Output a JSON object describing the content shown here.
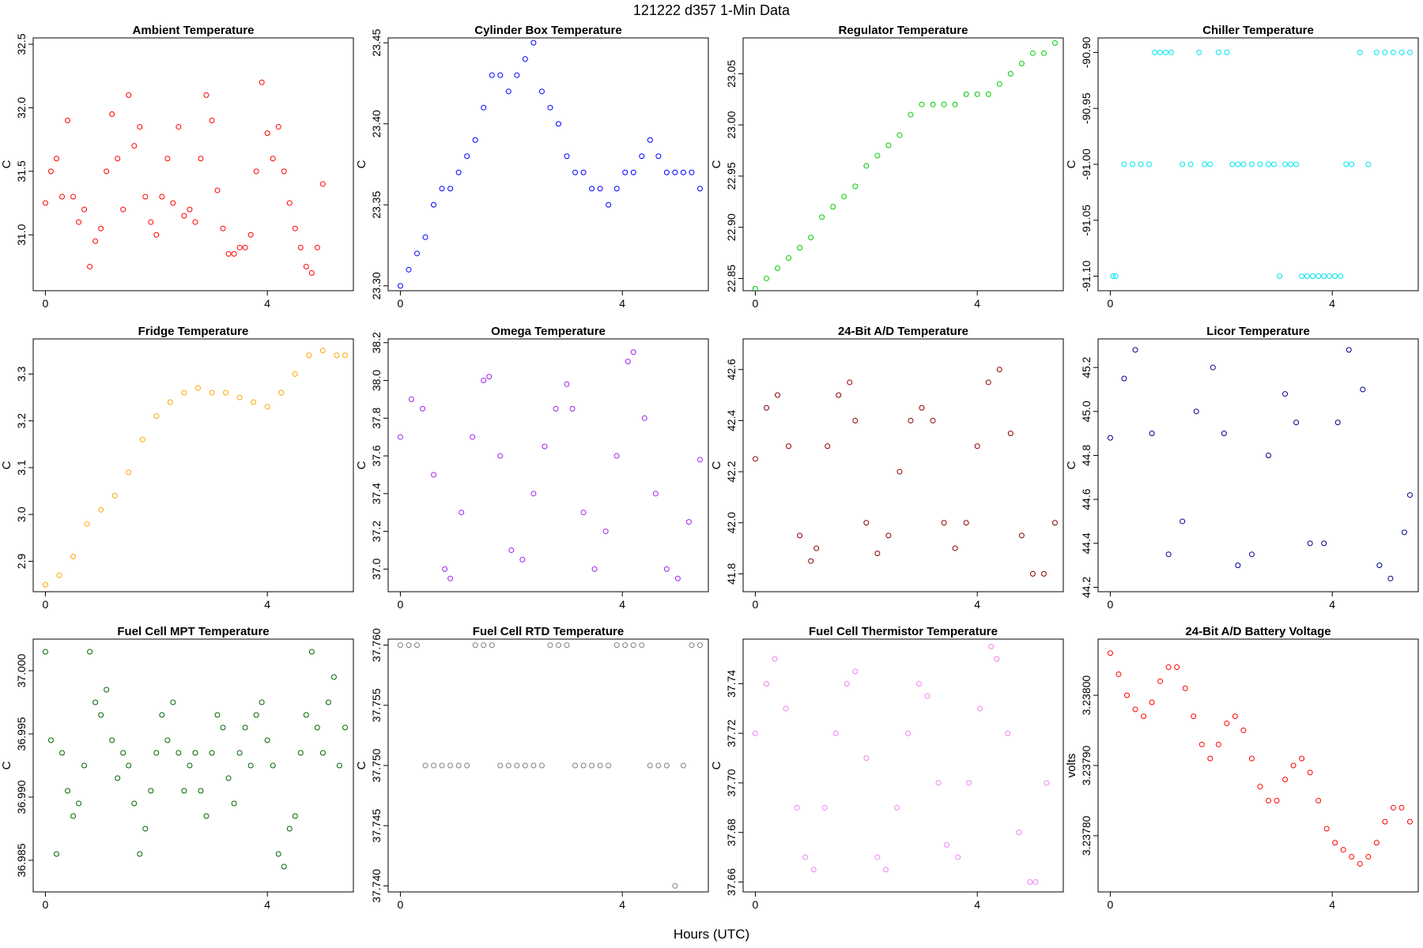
{
  "figure": {
    "suptitle": "121222   d357   1-Min Data",
    "xlabel": "Hours (UTC)"
  },
  "chart_data": [
    {
      "type": "scatter",
      "title": "Ambient Temperature",
      "ylabel": "C",
      "color": "#ff0000",
      "xticks": [
        0,
        4
      ],
      "yticks": [
        31.0,
        31.5,
        32.0,
        32.5
      ],
      "ytick_labels": [
        "31.0",
        "31.5",
        "32.0",
        "32.5"
      ],
      "xlim": [
        -0.22,
        5.55
      ],
      "ylim": [
        30.56,
        32.55
      ],
      "x": [
        0.0,
        0.1,
        0.2,
        0.3,
        0.4,
        0.5,
        0.6,
        0.7,
        0.8,
        0.9,
        1.0,
        1.1,
        1.2,
        1.3,
        1.4,
        1.5,
        1.6,
        1.7,
        1.8,
        1.9,
        2.0,
        2.1,
        2.2,
        2.3,
        2.4,
        2.5,
        2.6,
        2.7,
        2.8,
        2.9,
        3.0,
        3.1,
        3.2,
        3.3,
        3.4,
        3.5,
        3.6,
        3.7,
        3.8,
        3.9,
        4.0,
        4.1,
        4.2,
        4.3,
        4.4,
        4.5,
        4.6,
        4.7,
        4.8,
        4.9,
        5.0,
        5.1,
        5.2,
        5.3
      ],
      "y": [
        31.25,
        31.5,
        31.6,
        31.3,
        31.9,
        31.3,
        31.1,
        31.2,
        30.75,
        30.95,
        31.05,
        31.5,
        31.95,
        31.6,
        31.2,
        32.1,
        31.7,
        31.85,
        31.3,
        31.1,
        31.0,
        31.3,
        31.6,
        31.25,
        31.85,
        31.15,
        31.2,
        31.1,
        31.6,
        32.1,
        31.9,
        31.35,
        31.05,
        30.85,
        30.85,
        30.9,
        30.9,
        31.0,
        31.5,
        32.2,
        31.8,
        31.6,
        31.85,
        31.5,
        31.25,
        31.05,
        30.9,
        30.75,
        30.7,
        30.9,
        31.4,
        null,
        null,
        null
      ]
    },
    {
      "type": "scatter",
      "title": "Cylinder Box Temperature",
      "ylabel": "C",
      "color": "#0000ff",
      "xticks": [
        0,
        4
      ],
      "yticks": [
        23.3,
        23.35,
        23.4,
        23.45
      ],
      "ytick_labels": [
        "23.30",
        "23.35",
        "23.40",
        "23.45"
      ],
      "xlim": [
        -0.22,
        5.55
      ],
      "ylim": [
        23.297,
        23.453
      ],
      "x": [
        0.0,
        0.15,
        0.3,
        0.45,
        0.6,
        0.75,
        0.9,
        1.05,
        1.2,
        1.35,
        1.5,
        1.65,
        1.8,
        1.95,
        2.1,
        2.25,
        2.4,
        2.55,
        2.7,
        2.85,
        3.0,
        3.15,
        3.3,
        3.45,
        3.6,
        3.75,
        3.9,
        4.05,
        4.2,
        4.35,
        4.5,
        4.65,
        4.8,
        4.95,
        5.1,
        5.25,
        5.4
      ],
      "y": [
        23.3,
        23.31,
        23.32,
        23.33,
        23.35,
        23.36,
        23.36,
        23.37,
        23.38,
        23.39,
        23.41,
        23.43,
        23.43,
        23.42,
        23.43,
        23.44,
        23.45,
        23.42,
        23.41,
        23.4,
        23.38,
        23.37,
        23.37,
        23.36,
        23.36,
        23.35,
        23.36,
        23.37,
        23.37,
        23.38,
        23.39,
        23.38,
        23.37,
        23.37,
        23.37,
        23.37,
        23.36
      ]
    },
    {
      "type": "scatter",
      "title": "Regulator Temperature",
      "ylabel": "C",
      "color": "#00cc00",
      "xticks": [
        0,
        4
      ],
      "yticks": [
        22.85,
        22.9,
        22.95,
        23.0,
        23.05
      ],
      "ytick_labels": [
        "22.85",
        "22.90",
        "22.95",
        "23.00",
        "23.05"
      ],
      "xlim": [
        -0.22,
        5.55
      ],
      "ylim": [
        22.838,
        23.085
      ],
      "x": [
        0.0,
        0.2,
        0.4,
        0.6,
        0.8,
        1.0,
        1.2,
        1.4,
        1.6,
        1.8,
        2.0,
        2.2,
        2.4,
        2.6,
        2.8,
        3.0,
        3.2,
        3.4,
        3.6,
        3.8,
        4.0,
        4.2,
        4.4,
        4.6,
        4.8,
        5.0,
        5.2,
        5.4
      ],
      "y": [
        22.84,
        22.85,
        22.86,
        22.87,
        22.88,
        22.89,
        22.91,
        22.92,
        22.93,
        22.94,
        22.96,
        22.97,
        22.98,
        22.99,
        23.01,
        23.02,
        23.02,
        23.02,
        23.02,
        23.03,
        23.03,
        23.03,
        23.04,
        23.05,
        23.06,
        23.07,
        23.07,
        23.08
      ]
    },
    {
      "type": "scatter",
      "title": "Chiller Temperature",
      "ylabel": "C",
      "color": "#00e5ee",
      "xticks": [
        0,
        4
      ],
      "yticks": [
        -91.1,
        -91.05,
        -91.0,
        -90.95,
        -90.9
      ],
      "ytick_labels": [
        "-91.10",
        "-91.05",
        "-91.00",
        "-90.95",
        "-90.90"
      ],
      "xlim": [
        -0.22,
        5.55
      ],
      "ylim": [
        -91.113,
        -90.887
      ],
      "x": [
        0.05,
        0.1,
        0.25,
        0.4,
        0.55,
        0.7,
        0.8,
        0.9,
        1.0,
        1.1,
        1.3,
        1.45,
        1.6,
        1.7,
        1.8,
        1.95,
        2.1,
        2.2,
        2.3,
        2.4,
        2.55,
        2.7,
        2.85,
        2.95,
        3.05,
        3.15,
        3.25,
        3.35,
        3.45,
        3.55,
        3.65,
        3.75,
        3.85,
        3.95,
        4.05,
        4.15,
        4.25,
        4.35,
        4.5,
        4.65,
        4.8,
        4.95,
        5.1,
        5.25,
        5.4
      ],
      "y": [
        -91.1,
        -91.1,
        -91.0,
        -91.0,
        -91.0,
        -91.0,
        -90.9,
        -90.9,
        -90.9,
        -90.9,
        -91.0,
        -91.0,
        -90.9,
        -91.0,
        -91.0,
        -90.9,
        -90.9,
        -91.0,
        -91.0,
        -91.0,
        -91.0,
        -91.0,
        -91.0,
        -91.0,
        -91.1,
        -91.0,
        -91.0,
        -91.0,
        -91.1,
        -91.1,
        -91.1,
        -91.1,
        -91.1,
        -91.1,
        -91.1,
        -91.1,
        -91.0,
        -91.0,
        -90.9,
        -91.0,
        -90.9,
        -90.9,
        -90.9,
        -90.9,
        -90.9
      ]
    },
    {
      "type": "scatter",
      "title": "Fridge Temperature",
      "ylabel": "C",
      "color": "#ffa500",
      "xticks": [
        0,
        4
      ],
      "yticks": [
        2.9,
        3.0,
        3.1,
        3.2,
        3.3
      ],
      "ytick_labels": [
        "2.9",
        "3.0",
        "3.1",
        "3.2",
        "3.3"
      ],
      "xlim": [
        -0.22,
        5.55
      ],
      "ylim": [
        2.835,
        3.375
      ],
      "x": [
        0.0,
        0.25,
        0.5,
        0.75,
        1.0,
        1.25,
        1.5,
        1.75,
        2.0,
        2.25,
        2.5,
        2.75,
        3.0,
        3.25,
        3.5,
        3.75,
        4.0,
        4.25,
        4.5,
        4.75,
        5.0,
        5.25,
        5.4
      ],
      "y": [
        2.85,
        2.87,
        2.91,
        2.98,
        3.01,
        3.04,
        3.09,
        3.16,
        3.21,
        3.24,
        3.26,
        3.27,
        3.26,
        3.26,
        3.25,
        3.24,
        3.23,
        3.26,
        3.3,
        3.34,
        3.35,
        3.34,
        3.34
      ]
    },
    {
      "type": "scatter",
      "title": "Omega Temperature",
      "ylabel": "C",
      "color": "#a020f0",
      "xticks": [
        0,
        4
      ],
      "yticks": [
        37.0,
        37.2,
        37.4,
        37.6,
        37.8,
        38.0,
        38.2
      ],
      "ytick_labels": [
        "37.0",
        "37.2",
        "37.4",
        "37.6",
        "37.8",
        "38.0",
        "38.2"
      ],
      "xlim": [
        -0.22,
        5.55
      ],
      "ylim": [
        36.88,
        38.22
      ],
      "x": [
        0.0,
        0.2,
        0.4,
        0.6,
        0.8,
        0.9,
        1.1,
        1.3,
        1.5,
        1.6,
        1.8,
        2.0,
        2.2,
        2.4,
        2.6,
        2.8,
        3.0,
        3.1,
        3.3,
        3.5,
        3.7,
        3.9,
        4.1,
        4.2,
        4.4,
        4.6,
        4.8,
        5.0,
        5.2,
        5.4
      ],
      "y": [
        37.7,
        37.9,
        37.85,
        37.5,
        37.0,
        36.95,
        37.3,
        37.7,
        38.0,
        38.02,
        37.6,
        37.1,
        37.05,
        37.4,
        37.65,
        37.85,
        37.98,
        37.85,
        37.3,
        37.0,
        37.2,
        37.6,
        38.1,
        38.15,
        37.8,
        37.4,
        37.0,
        36.95,
        37.25,
        37.58
      ]
    },
    {
      "type": "scatter",
      "title": "24-Bit A/D Temperature",
      "ylabel": "C",
      "color": "#8b0000",
      "xticks": [
        0,
        4
      ],
      "yticks": [
        41.8,
        42.0,
        42.2,
        42.4,
        42.6
      ],
      "ytick_labels": [
        "41.8",
        "42.0",
        "42.2",
        "42.4",
        "42.6"
      ],
      "xlim": [
        -0.22,
        5.55
      ],
      "ylim": [
        41.73,
        42.72
      ],
      "x": [
        0.0,
        0.2,
        0.4,
        0.6,
        0.8,
        1.0,
        1.1,
        1.3,
        1.5,
        1.7,
        1.8,
        2.0,
        2.2,
        2.4,
        2.6,
        2.8,
        3.0,
        3.2,
        3.4,
        3.6,
        3.8,
        4.0,
        4.2,
        4.4,
        4.6,
        4.8,
        5.0,
        5.2,
        5.4
      ],
      "y": [
        42.25,
        42.45,
        42.5,
        42.3,
        41.95,
        41.85,
        41.9,
        42.3,
        42.5,
        42.55,
        42.4,
        42.0,
        41.88,
        41.95,
        42.2,
        42.4,
        42.45,
        42.4,
        42.0,
        41.9,
        42.0,
        42.3,
        42.55,
        42.6,
        42.35,
        41.95,
        41.8,
        41.8,
        42.0
      ]
    },
    {
      "type": "scatter",
      "title": "Licor Temperature",
      "ylabel": "C",
      "color": "#00008b",
      "xticks": [
        0,
        4
      ],
      "yticks": [
        44.2,
        44.4,
        44.6,
        44.8,
        45.0,
        45.2
      ],
      "ytick_labels": [
        "44.2",
        "44.4",
        "44.6",
        "44.8",
        "45.0",
        "45.2"
      ],
      "xlim": [
        -0.22,
        5.55
      ],
      "ylim": [
        44.18,
        45.33
      ],
      "x": [
        0.0,
        0.25,
        0.45,
        0.75,
        1.05,
        1.3,
        1.55,
        1.85,
        2.05,
        2.3,
        2.55,
        2.85,
        3.15,
        3.35,
        3.6,
        3.85,
        4.1,
        4.3,
        4.55,
        4.85,
        5.05,
        5.3,
        5.4
      ],
      "y": [
        44.88,
        45.15,
        45.28,
        44.9,
        44.35,
        44.5,
        45.0,
        45.2,
        44.9,
        44.3,
        44.35,
        44.8,
        45.08,
        44.95,
        44.4,
        44.4,
        44.95,
        45.28,
        45.1,
        44.3,
        44.24,
        44.45,
        44.62
      ]
    },
    {
      "type": "scatter",
      "title": "Fuel Cell MPT Temperature",
      "ylabel": "C",
      "color": "#006400",
      "xticks": [
        0,
        4
      ],
      "yticks": [
        36.985,
        36.99,
        36.995,
        37.0
      ],
      "ytick_labels": [
        "36.985",
        "36.990",
        "36.995",
        "37.000"
      ],
      "xlim": [
        -0.22,
        5.55
      ],
      "ylim": [
        36.9825,
        37.0025
      ],
      "x": [
        0.0,
        0.1,
        0.2,
        0.3,
        0.4,
        0.5,
        0.6,
        0.7,
        0.8,
        0.9,
        1.0,
        1.1,
        1.2,
        1.3,
        1.4,
        1.5,
        1.6,
        1.7,
        1.8,
        1.9,
        2.0,
        2.1,
        2.2,
        2.3,
        2.4,
        2.5,
        2.6,
        2.7,
        2.8,
        2.9,
        3.0,
        3.1,
        3.2,
        3.3,
        3.4,
        3.5,
        3.6,
        3.7,
        3.8,
        3.9,
        4.0,
        4.1,
        4.2,
        4.3,
        4.4,
        4.5,
        4.6,
        4.7,
        4.8,
        4.9,
        5.0,
        5.1,
        5.2,
        5.3,
        5.4
      ],
      "y": [
        37.0015,
        36.9945,
        36.9855,
        36.9935,
        36.9905,
        36.9885,
        36.9895,
        36.9925,
        37.0015,
        36.9975,
        36.9965,
        36.9985,
        36.9945,
        36.9915,
        36.9935,
        36.9925,
        36.9895,
        36.9855,
        36.9875,
        36.9905,
        36.9935,
        36.9965,
        36.9945,
        36.9975,
        36.9935,
        36.9905,
        36.9925,
        36.9935,
        36.9905,
        36.9885,
        36.9935,
        36.9965,
        36.9955,
        36.9915,
        36.9895,
        36.9935,
        36.9955,
        36.9925,
        36.9965,
        36.9975,
        36.9945,
        36.9925,
        36.9855,
        36.9845,
        36.9875,
        36.9885,
        36.9935,
        36.9965,
        37.0015,
        36.9955,
        36.9935,
        36.9975,
        36.9995,
        36.9925,
        36.9955
      ]
    },
    {
      "type": "scatter",
      "title": "Fuel Cell RTD Temperature",
      "ylabel": "C",
      "color": "#808080",
      "xticks": [
        0,
        4
      ],
      "yticks": [
        37.74,
        37.745,
        37.75,
        37.755,
        37.76
      ],
      "ytick_labels": [
        "37.740",
        "37.745",
        "37.750",
        "37.755",
        "37.760"
      ],
      "xlim": [
        -0.22,
        5.55
      ],
      "ylim": [
        37.7395,
        37.7605
      ],
      "x": [
        0.0,
        0.15,
        0.3,
        0.45,
        0.6,
        0.75,
        0.9,
        1.05,
        1.2,
        1.35,
        1.5,
        1.65,
        1.8,
        1.95,
        2.1,
        2.25,
        2.4,
        2.55,
        2.7,
        2.85,
        3.0,
        3.15,
        3.3,
        3.45,
        3.6,
        3.75,
        3.9,
        4.05,
        4.2,
        4.35,
        4.5,
        4.65,
        4.8,
        4.95,
        5.1,
        5.25,
        5.4
      ],
      "y": [
        37.76,
        37.76,
        37.76,
        37.75,
        37.75,
        37.75,
        37.75,
        37.75,
        37.75,
        37.76,
        37.76,
        37.76,
        37.75,
        37.75,
        37.75,
        37.75,
        37.75,
        37.75,
        37.76,
        37.76,
        37.76,
        37.75,
        37.75,
        37.75,
        37.75,
        37.75,
        37.76,
        37.76,
        37.76,
        37.76,
        37.75,
        37.75,
        37.75,
        37.74,
        37.75,
        37.76,
        37.76
      ]
    },
    {
      "type": "scatter",
      "title": "Fuel Cell Thermistor Temperature",
      "ylabel": "C",
      "color": "#ee82ee",
      "xticks": [
        0,
        4
      ],
      "yticks": [
        37.66,
        37.68,
        37.7,
        37.72,
        37.74
      ],
      "ytick_labels": [
        "37.66",
        "37.68",
        "37.70",
        "37.72",
        "37.74"
      ],
      "xlim": [
        -0.22,
        5.55
      ],
      "ylim": [
        37.656,
        37.758
      ],
      "x": [
        0.0,
        0.2,
        0.35,
        0.55,
        0.75,
        0.9,
        1.05,
        1.25,
        1.45,
        1.65,
        1.8,
        2.0,
        2.2,
        2.35,
        2.55,
        2.75,
        2.95,
        3.1,
        3.3,
        3.45,
        3.65,
        3.85,
        4.05,
        4.25,
        4.35,
        4.55,
        4.75,
        4.95,
        5.05,
        5.25
      ],
      "y": [
        37.72,
        37.74,
        37.75,
        37.73,
        37.69,
        37.67,
        37.665,
        37.69,
        37.72,
        37.74,
        37.745,
        37.71,
        37.67,
        37.665,
        37.69,
        37.72,
        37.74,
        37.735,
        37.7,
        37.675,
        37.67,
        37.7,
        37.73,
        37.755,
        37.75,
        37.72,
        37.68,
        37.66,
        37.66,
        37.7
      ]
    },
    {
      "type": "scatter",
      "title": "24-Bit A/D Battery Voltage",
      "ylabel": "volts",
      "color": "#ff0000",
      "xticks": [
        0,
        4
      ],
      "yticks": [
        3.2378,
        3.2379,
        3.238
      ],
      "ytick_labels": [
        "3.23780",
        "3.23790",
        "3.23800"
      ],
      "xlim": [
        -0.22,
        5.55
      ],
      "ylim": [
        3.23772,
        3.23808
      ],
      "x": [
        0.0,
        0.15,
        0.3,
        0.45,
        0.6,
        0.75,
        0.9,
        1.05,
        1.2,
        1.35,
        1.5,
        1.65,
        1.8,
        1.95,
        2.1,
        2.25,
        2.4,
        2.55,
        2.7,
        2.85,
        3.0,
        3.15,
        3.3,
        3.45,
        3.6,
        3.75,
        3.9,
        4.05,
        4.2,
        4.35,
        4.5,
        4.65,
        4.8,
        4.95,
        5.1,
        5.25,
        5.4
      ],
      "y": [
        3.23806,
        3.23803,
        3.238,
        3.23798,
        3.23797,
        3.23799,
        3.23802,
        3.23804,
        3.23804,
        3.23801,
        3.23797,
        3.23793,
        3.23791,
        3.23793,
        3.23796,
        3.23797,
        3.23795,
        3.23791,
        3.23787,
        3.23785,
        3.23785,
        3.23788,
        3.2379,
        3.23791,
        3.23789,
        3.23785,
        3.23781,
        3.23779,
        3.23778,
        3.23777,
        3.23776,
        3.23777,
        3.23779,
        3.23782,
        3.23784,
        3.23784,
        3.23782
      ]
    }
  ]
}
